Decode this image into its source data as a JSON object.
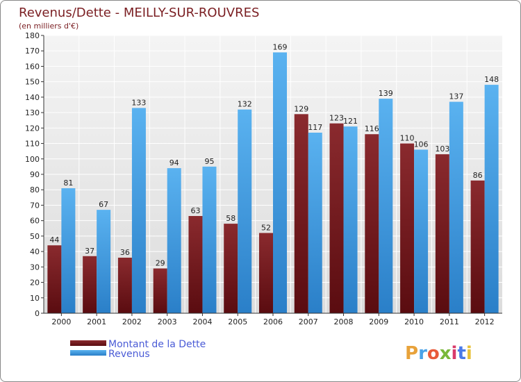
{
  "chart_data": {
    "type": "bar",
    "title": "Revenus/Dette - MEILLY-SUR-ROUVRES",
    "subtitle": "(en milliers d'€)",
    "xlabel": "",
    "ylabel": "",
    "ylim": [
      0,
      180
    ],
    "ytick_step": 10,
    "grid": true,
    "categories": [
      "2000",
      "2001",
      "2002",
      "2003",
      "2004",
      "2005",
      "2006",
      "2007",
      "2008",
      "2009",
      "2010",
      "2011",
      "2012"
    ],
    "series": [
      {
        "name": "Montant de la Dette",
        "color": "#7a1e22",
        "values": [
          44,
          37,
          36,
          29,
          63,
          58,
          52,
          129,
          123,
          116,
          110,
          103,
          86
        ]
      },
      {
        "name": "Revenus",
        "color": "#4aa3e8",
        "values": [
          81,
          67,
          133,
          94,
          95,
          132,
          169,
          117,
          121,
          139,
          106,
          137,
          148
        ]
      }
    ],
    "legend": {
      "position": "bottom-left"
    }
  },
  "brand": {
    "name": "Proxiti",
    "letters": [
      "P",
      "r",
      "o",
      "x",
      "i",
      "t",
      "i"
    ],
    "colors": [
      "#e8a23a",
      "#4aa3e8",
      "#e85a3a",
      "#7ab83a",
      "#d83a6a",
      "#4a7ae8",
      "#e8c23a"
    ]
  }
}
